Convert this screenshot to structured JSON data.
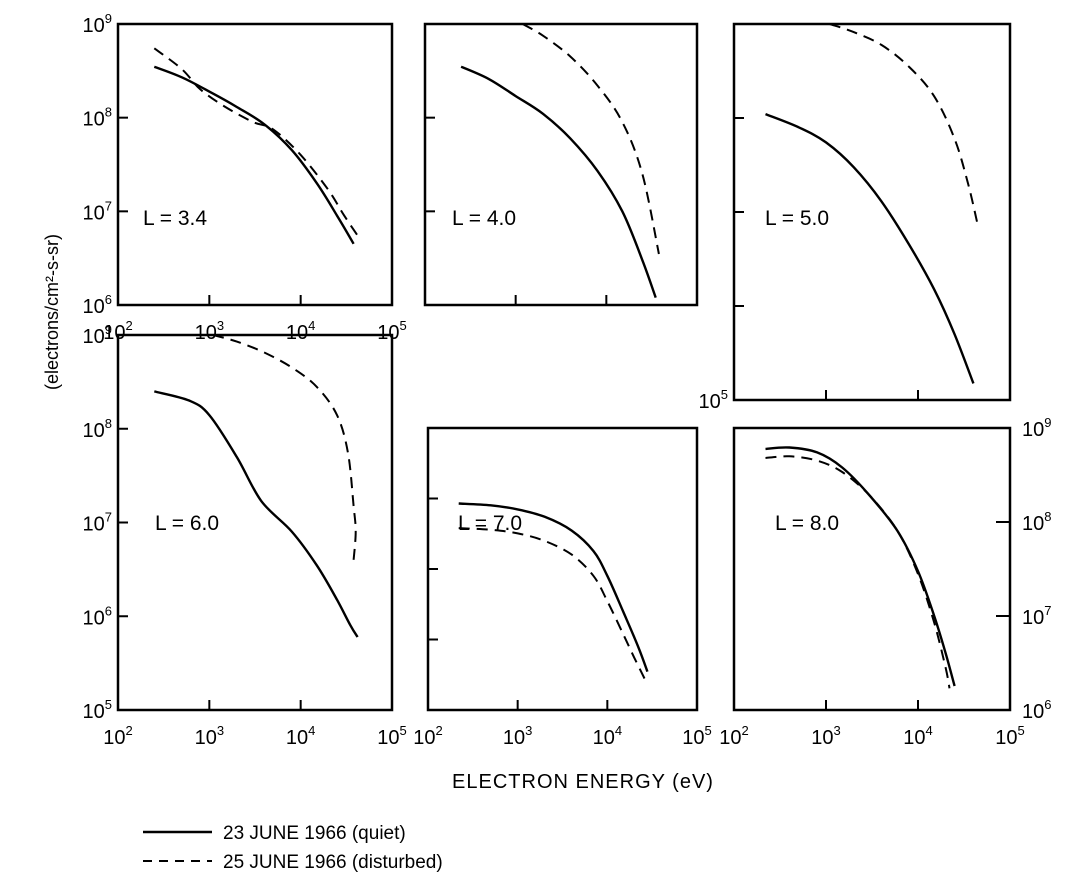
{
  "chart_data": [
    {
      "type": "line",
      "panel": "L = 3.4",
      "label": "L = 3.4",
      "xscale": "log",
      "yscale": "log",
      "xlim": [
        100,
        100000
      ],
      "ylim": [
        1000000,
        1000000000
      ],
      "xticks": [
        "10^2",
        "10^3",
        "10^4",
        "10^5"
      ],
      "yticks": [
        "10^6",
        "10^7",
        "10^8",
        "10^9"
      ],
      "series": [
        {
          "name": "23 JUNE 1966 (quiet)",
          "style": "solid",
          "x": [
            250,
            500,
            1000,
            2000,
            4000,
            8000,
            15000,
            25000,
            38000
          ],
          "y": [
            350000000,
            270000000,
            190000000,
            130000000,
            85000000,
            45000000,
            20000000,
            9000000,
            4500000
          ]
        },
        {
          "name": "25 JUNE 1966 (disturbed)",
          "style": "dashed",
          "x": [
            250,
            500,
            800,
            1500,
            3000,
            5000,
            10000,
            20000,
            30000,
            45000
          ],
          "y": [
            550000000,
            330000000,
            200000000,
            130000000,
            90000000,
            75000000,
            40000000,
            17000000,
            9000000,
            5000000
          ]
        }
      ]
    },
    {
      "type": "line",
      "panel": "L = 4.0",
      "label": "L = 4.0",
      "xscale": "log",
      "yscale": "log",
      "xlim": [
        100,
        100000
      ],
      "ylim": [
        1000000,
        1000000000
      ],
      "xticks": [],
      "yticks": [],
      "series": [
        {
          "name": "23 JUNE 1966 (quiet)",
          "style": "solid",
          "x": [
            250,
            500,
            1000,
            2000,
            4000,
            8000,
            15000,
            25000,
            35000
          ],
          "y": [
            350000000,
            260000000,
            170000000,
            110000000,
            60000000,
            27000000,
            10000000,
            3000000,
            1200000
          ]
        },
        {
          "name": "25 JUNE 1966 (disturbed)",
          "style": "dashed",
          "x": [
            1200,
            2000,
            4000,
            8000,
            15000,
            25000,
            38000
          ],
          "y": [
            1000000000,
            750000000,
            450000000,
            220000000,
            90000000,
            25000000,
            3500000
          ]
        }
      ]
    },
    {
      "type": "line",
      "panel": "L = 5.0",
      "label": "L = 5.0",
      "xscale": "log",
      "yscale": "log",
      "xlim": [
        100,
        100000
      ],
      "ylim": [
        100000,
        1000000000
      ],
      "xticks": [],
      "yticks": [
        "10^5"
      ],
      "series": [
        {
          "name": "23 JUNE 1966 (quiet)",
          "style": "solid",
          "x": [
            220,
            500,
            1000,
            2000,
            4000,
            8000,
            15000,
            25000,
            40000
          ],
          "y": [
            110000000,
            80000000,
            55000000,
            30000000,
            13000000,
            4500000,
            1500000,
            500000,
            150000
          ]
        },
        {
          "name": "25 JUNE 1966 (disturbed)",
          "style": "dashed",
          "x": [
            1100,
            2000,
            4000,
            8000,
            15000,
            25000,
            35000,
            45000
          ],
          "y": [
            1000000000,
            820000000,
            600000000,
            350000000,
            170000000,
            60000000,
            20000000,
            7000000
          ]
        }
      ]
    },
    {
      "type": "line",
      "panel": "L = 6.0",
      "label": "L = 6.0",
      "xscale": "log",
      "yscale": "log",
      "xlim": [
        100,
        100000
      ],
      "ylim": [
        100000,
        1000000000
      ],
      "xticks": [
        "10^2",
        "10^3",
        "10^4",
        "10^5"
      ],
      "yticks": [
        "10^5",
        "10^6",
        "10^7",
        "10^8",
        "10^9"
      ],
      "series": [
        {
          "name": "23 JUNE 1966 (quiet)",
          "style": "solid",
          "x": [
            250,
            600,
            1000,
            2000,
            3700,
            8000,
            15000,
            25000,
            35000,
            42000
          ],
          "y": [
            250000000,
            200000000,
            140000000,
            50000000,
            17000000,
            8000000,
            3500000,
            1500000,
            800000,
            600000
          ]
        },
        {
          "name": "25 JUNE 1966 (disturbed)",
          "style": "dashed",
          "x": [
            1100,
            2000,
            4000,
            8000,
            15000,
            25000,
            33000,
            38000,
            40000,
            38000
          ],
          "y": [
            1000000000,
            850000000,
            650000000,
            450000000,
            280000000,
            140000000,
            55000000,
            15000000,
            8000000,
            4000000
          ]
        }
      ]
    },
    {
      "type": "line",
      "panel": "L = 7.0",
      "label": "L = 7.0",
      "xscale": "log",
      "yscale": "log",
      "xlim": [
        100,
        100000
      ],
      "ylim": [
        100000,
        1000000000
      ],
      "xticks": [
        "10^2",
        "10^3",
        "10^4",
        "10^5"
      ],
      "yticks": [],
      "series": [
        {
          "name": "23 JUNE 1966 (quiet)",
          "style": "solid",
          "x": [
            220,
            500,
            1000,
            2000,
            4000,
            7000,
            10000,
            15000,
            22000,
            28000
          ],
          "y": [
            85000000,
            80000000,
            70000000,
            55000000,
            35000000,
            18000000,
            8000000,
            2500000,
            800000,
            350000
          ]
        },
        {
          "name": "25 JUNE 1966 (disturbed)",
          "style": "dashed",
          "x": [
            220,
            500,
            1000,
            2000,
            4000,
            7000,
            10000,
            15000,
            20000,
            26000
          ],
          "y": [
            38000000,
            36000000,
            32000000,
            25000000,
            16000000,
            8000000,
            3500000,
            1200000,
            550000,
            280000
          ]
        }
      ]
    },
    {
      "type": "line",
      "panel": "L = 8.0",
      "label": "L = 8.0",
      "xscale": "log",
      "yscale": "log",
      "xlim": [
        100,
        100000
      ],
      "ylim": [
        1000000,
        1000000000
      ],
      "xticks": [
        "10^2",
        "10^3",
        "10^4",
        "10^5"
      ],
      "yticks": [
        "10^6",
        "10^7",
        "10^8",
        "10^9"
      ],
      "yaxis_side": "right",
      "series": [
        {
          "name": "23 JUNE 1966 (quiet)",
          "style": "solid",
          "x": [
            220,
            400,
            800,
            1500,
            3000,
            6000,
            10000,
            15000,
            20000,
            25000
          ],
          "y": [
            600000000,
            620000000,
            550000000,
            380000000,
            190000000,
            80000000,
            30000000,
            10000000,
            4000000,
            1800000
          ]
        },
        {
          "name": "25 JUNE 1966 (disturbed)",
          "style": "dashed",
          "x": [
            220,
            400,
            800,
            1500,
            3000,
            6000,
            10000,
            15000,
            20000,
            22000
          ],
          "y": [
            480000000,
            500000000,
            450000000,
            340000000,
            190000000,
            80000000,
            28000000,
            8500000,
            2800000,
            1700000
          ]
        }
      ]
    }
  ],
  "xlabel": "ELECTRON ENERGY (eV)",
  "ylabel": "(electrons/cm²-s-sr)",
  "legend": [
    {
      "label": "23 JUNE 1966 (quiet)",
      "style": "solid"
    },
    {
      "label": "25 JUNE 1966 (disturbed)",
      "style": "dashed"
    }
  ],
  "legend_position": "bottom-left"
}
